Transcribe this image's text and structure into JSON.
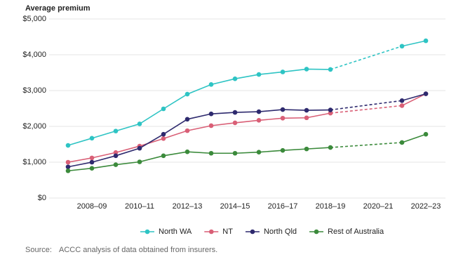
{
  "chart_data": {
    "type": "line",
    "y_label": "Average premium",
    "categories": [
      null,
      "2008–09",
      null,
      "2010–11",
      null,
      "2012–13",
      null,
      "2014–15",
      null,
      "2016–17",
      null,
      "2018–19",
      null,
      "2020–21",
      null,
      "2022–23"
    ],
    "series": [
      {
        "name": "North WA",
        "color": "#2ec4c4",
        "values": [
          1470,
          1670,
          1870,
          2070,
          2490,
          2900,
          3170,
          3330,
          3450,
          3520,
          3600,
          3590,
          null,
          null,
          4240,
          4390
        ]
      },
      {
        "name": "NT",
        "color": "#d95f76",
        "values": [
          1000,
          1120,
          1270,
          1450,
          1660,
          1880,
          2020,
          2100,
          2170,
          2230,
          2240,
          2370,
          null,
          null,
          2580,
          2910
        ]
      },
      {
        "name": "North Qld",
        "color": "#2e2a6e",
        "values": [
          870,
          1000,
          1180,
          1390,
          1780,
          2200,
          2350,
          2390,
          2410,
          2470,
          2450,
          2460,
          null,
          null,
          2720,
          2910
        ]
      },
      {
        "name": "Rest of Australia",
        "color": "#3b8a3b",
        "values": [
          760,
          830,
          930,
          1010,
          1180,
          1290,
          1250,
          1250,
          1280,
          1330,
          1370,
          1410,
          null,
          null,
          1550,
          1780
        ]
      }
    ],
    "ylim": [
      0,
      5000
    ],
    "yticks": [
      {
        "value": 0,
        "label": "$0"
      },
      {
        "value": 1000,
        "label": "$1,000"
      },
      {
        "value": 2000,
        "label": "$2,000"
      },
      {
        "value": 3000,
        "label": "$3,000"
      },
      {
        "value": 4000,
        "label": "$4,000"
      },
      {
        "value": 5000,
        "label": "$5,000"
      }
    ],
    "grid": true,
    "gap_style": "dashed",
    "legend": "bottom",
    "source_label": "Source:",
    "source": "ACCC analysis of data obtained from insurers."
  }
}
